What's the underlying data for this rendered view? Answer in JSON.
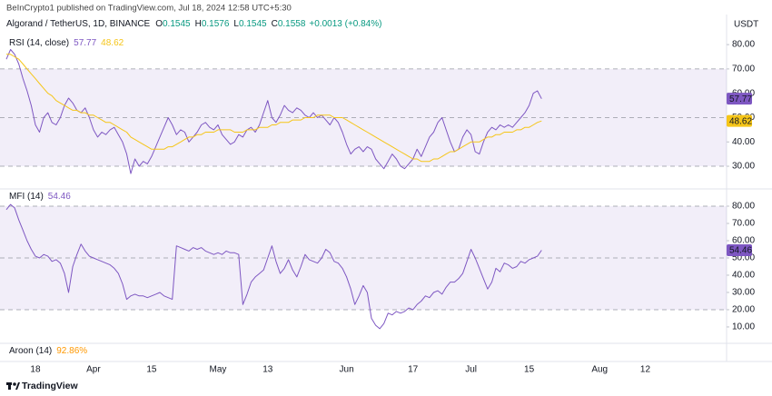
{
  "header": {
    "published": "BeInCrypto1 published on TradingView.com, Jul 18, 2024 12:58 UTC+5:30",
    "symbol": "Algorand / TetherUS, 1D, BINANCE",
    "ohlc": [
      {
        "label": "O",
        "value": 0.1545
      },
      {
        "label": "H",
        "value": 0.1576
      },
      {
        "label": "L",
        "value": 0.1545
      },
      {
        "label": "C",
        "value": 0.1558
      }
    ],
    "change": "+0.0013 (+0.84%)",
    "currency": "USDT"
  },
  "chart_data": [
    {
      "type": "line",
      "title": "RSI (14, close)",
      "xlim": [
        0,
        172.5
      ],
      "ylim": [
        21.8,
        83.4
      ],
      "yticks": [
        {
          "value": 80,
          "label": "80.00"
        },
        {
          "value": 70,
          "label": "70.00"
        },
        {
          "value": 60,
          "label": "60.00"
        },
        {
          "value": 50,
          "label": "50.00"
        },
        {
          "value": 40,
          "label": "40.00"
        },
        {
          "value": 30,
          "label": "30.00"
        }
      ],
      "band": [
        30,
        70
      ],
      "levels": [
        70,
        50,
        30
      ],
      "band_color": "#7e57c2",
      "series": [
        {
          "name": "RSI",
          "color": "#7e57c2",
          "values": [
            74,
            78,
            76,
            72,
            66,
            61,
            55,
            47,
            44,
            50,
            52,
            48,
            47,
            50,
            55,
            58,
            56,
            53,
            52,
            54,
            50,
            45,
            42,
            44,
            43,
            45,
            46,
            43,
            40,
            35,
            27,
            33,
            30,
            32,
            31,
            34,
            38,
            42,
            46,
            50,
            47,
            43,
            45,
            44,
            40,
            42,
            44,
            47,
            48,
            46,
            45,
            47,
            43,
            41,
            39,
            40,
            43,
            42,
            45,
            46,
            44,
            47,
            52,
            57,
            50,
            48,
            51,
            55,
            53,
            52,
            54,
            53,
            51,
            50,
            52,
            50,
            51,
            49,
            47,
            50,
            48,
            44,
            39,
            35,
            37,
            38,
            36,
            38,
            37,
            33,
            31,
            29,
            32,
            35,
            33,
            30,
            29,
            31,
            33,
            37,
            34,
            38,
            42,
            44,
            48,
            50,
            45,
            40,
            36,
            37,
            42,
            45,
            43,
            36,
            35,
            40,
            44,
            46,
            45,
            47,
            46,
            47,
            46,
            48,
            50,
            52,
            55,
            60,
            61,
            57.77
          ]
        },
        {
          "name": "RSI-based MA",
          "color": "#f5c518",
          "values": [
            76,
            76,
            75,
            74,
            72,
            70,
            68,
            66,
            64,
            62,
            60,
            59,
            57,
            56,
            55,
            54,
            53,
            53,
            52,
            52,
            51,
            51,
            50,
            49,
            48,
            48,
            47,
            46,
            45,
            44,
            42,
            41,
            40,
            39,
            38,
            37,
            37,
            37,
            37,
            38,
            38,
            39,
            40,
            41,
            42,
            42,
            43,
            43,
            44,
            44,
            44,
            45,
            45,
            45,
            45,
            44,
            44,
            44,
            45,
            45,
            45,
            46,
            46,
            46,
            47,
            47,
            48,
            48,
            48,
            49,
            49,
            49,
            50,
            50,
            50,
            51,
            51,
            51,
            51,
            50,
            50,
            50,
            49,
            48,
            47,
            46,
            45,
            44,
            43,
            42,
            41,
            40,
            39,
            38,
            37,
            36,
            35,
            34,
            33,
            33,
            32,
            32,
            32,
            33,
            33,
            34,
            35,
            36,
            36,
            37,
            38,
            39,
            40,
            40,
            40,
            41,
            42,
            42,
            43,
            43,
            44,
            44,
            44,
            45,
            45,
            46,
            46,
            47,
            48,
            48.62
          ]
        }
      ]
    },
    {
      "type": "line",
      "title": "MFI (14)",
      "xlim": [
        0,
        172.5
      ],
      "ylim": [
        0.5,
        87.9
      ],
      "yticks": [
        {
          "value": 80,
          "label": "80.00"
        },
        {
          "value": 70,
          "label": "70.00"
        },
        {
          "value": 60,
          "label": "60.00"
        },
        {
          "value": 50,
          "label": "50.00"
        },
        {
          "value": 40,
          "label": "40.00"
        },
        {
          "value": 30,
          "label": "30.00"
        },
        {
          "value": 20,
          "label": "20.00"
        },
        {
          "value": 10,
          "label": "10.00"
        }
      ],
      "xticks": [
        {
          "value": 7,
          "label": "18"
        },
        {
          "value": 21,
          "label": "Apr"
        },
        {
          "value": 35,
          "label": "15"
        },
        {
          "value": 51,
          "label": "May"
        },
        {
          "value": 63,
          "label": "13"
        },
        {
          "value": 82,
          "label": "Jun"
        },
        {
          "value": 98,
          "label": "17"
        },
        {
          "value": 112,
          "label": "Jul"
        },
        {
          "value": 126,
          "label": "15"
        },
        {
          "value": 143,
          "label": "Aug"
        },
        {
          "value": 154,
          "label": "12"
        }
      ],
      "band": [
        20,
        80
      ],
      "levels": [
        80,
        50,
        20
      ],
      "band_color": "#7e57c2",
      "series": [
        {
          "name": "MFI",
          "color": "#7e57c2",
          "values": [
            78,
            81,
            79,
            72,
            66,
            60,
            55,
            51,
            50,
            52,
            51,
            48,
            49,
            47,
            41,
            30,
            45,
            52,
            58,
            54,
            51,
            50,
            49,
            48,
            47,
            46,
            44,
            41,
            35,
            26,
            28,
            29,
            28,
            28,
            27,
            28,
            29,
            30,
            28,
            27,
            26,
            57,
            56,
            55,
            54,
            56,
            55,
            56,
            54,
            53,
            52,
            53,
            52,
            54,
            53,
            53,
            52,
            23,
            29,
            36,
            39,
            41,
            43,
            50,
            57,
            48,
            41,
            44,
            49,
            43,
            39,
            45,
            52,
            49,
            48,
            47,
            50,
            55,
            53,
            48,
            47,
            44,
            39,
            32,
            23,
            28,
            34,
            30,
            15,
            11,
            9,
            12,
            18,
            17,
            19,
            18,
            19,
            21,
            20,
            23,
            25,
            28,
            27,
            30,
            31,
            29,
            33,
            36,
            36,
            38,
            41,
            48,
            55,
            50,
            44,
            38,
            32,
            36,
            44,
            42,
            47,
            46,
            44,
            45,
            48,
            47,
            49,
            50,
            51,
            54.46
          ]
        }
      ]
    }
  ],
  "aroon": {
    "title": "Aroon (14)",
    "value_label": "92.86%"
  },
  "footer": {
    "brand": "TradingView"
  }
}
